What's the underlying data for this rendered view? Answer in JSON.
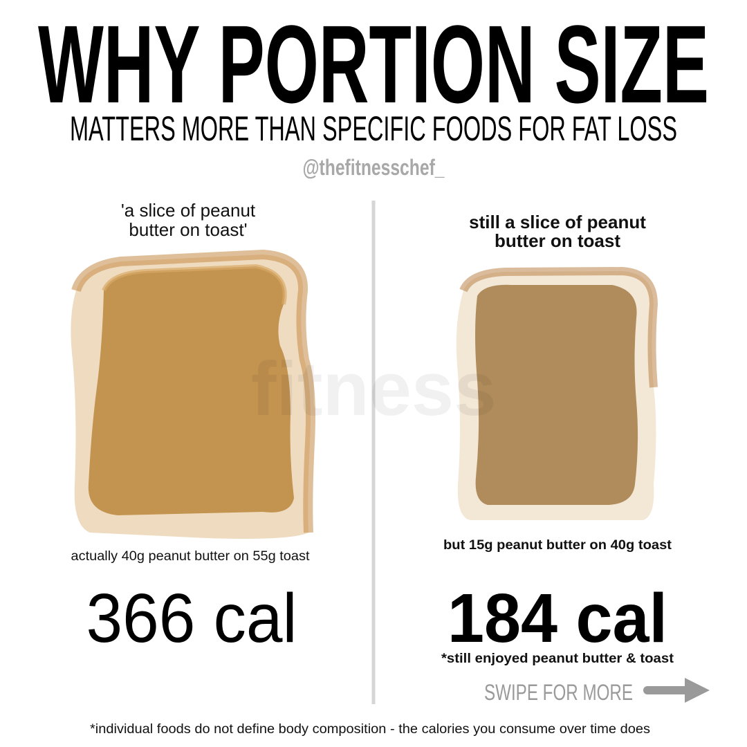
{
  "header": {
    "title": "WHY PORTION SIZE",
    "subtitle": "MATTERS MORE THAN SPECIFIC FOODS FOR FAT LOSS",
    "handle": "@thefitnesschef_"
  },
  "watermark": "fitness",
  "left": {
    "caption": [
      "'a slice of peanut",
      "butter on toast'"
    ],
    "detail": "actually 40g peanut butter on 55g toast",
    "calories": "366 cal"
  },
  "right": {
    "caption": [
      "still a slice of peanut",
      "butter on toast"
    ],
    "detail": "but 15g peanut butter on 40g toast",
    "calories": "184 cal",
    "note": "*still enjoyed peanut butter & toast"
  },
  "swipe": "SWIPE FOR MORE",
  "footer": "*individual foods do not define body composition - the calories you consume over time does"
}
